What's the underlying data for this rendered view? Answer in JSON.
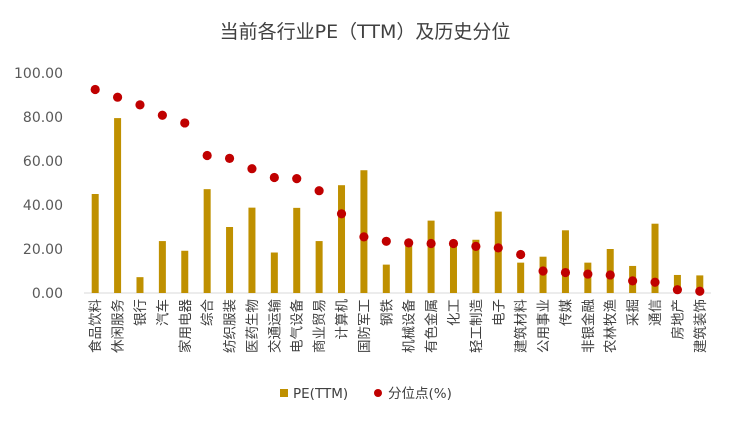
{
  "chart_data": {
    "type": "bar",
    "title": "当前各行业PE（TTM）及历史分位",
    "categories": [
      "食品饮料",
      "休闲服务",
      "银行",
      "汽车",
      "家用电器",
      "综合",
      "纺织服装",
      "医药生物",
      "交通运输",
      "电气设备",
      "商业贸易",
      "计算机",
      "国防军工",
      "钢铁",
      "机械设备",
      "有色金属",
      "化工",
      "轻工制造",
      "电子",
      "建筑材料",
      "公用事业",
      "传媒",
      "非银金融",
      "农林牧渔",
      "采掘",
      "通信",
      "房地产",
      "建筑装饰"
    ],
    "series": [
      {
        "name": "PE(TTM)",
        "kind": "bar",
        "color": "#BF9000",
        "values": [
          45.0,
          79.5,
          7.2,
          23.6,
          19.2,
          47.2,
          30.0,
          38.8,
          18.4,
          38.7,
          23.6,
          49.0,
          55.8,
          12.9,
          22.8,
          32.9,
          22.2,
          24.2,
          37.0,
          13.8,
          16.5,
          28.5,
          13.8,
          20.0,
          12.3,
          31.5,
          8.2,
          8.0
        ]
      },
      {
        "name": "分位点(%)",
        "kind": "scatter",
        "color": "#C00000",
        "values": [
          92.5,
          89.0,
          85.5,
          80.8,
          77.3,
          62.5,
          61.2,
          56.5,
          52.5,
          52.0,
          46.5,
          36.0,
          25.5,
          23.5,
          22.8,
          22.5,
          22.5,
          21.2,
          20.5,
          17.5,
          10.0,
          9.3,
          8.6,
          8.2,
          5.5,
          4.9,
          1.5,
          0.8
        ]
      }
    ],
    "ylim": [
      0,
      100
    ],
    "yticks": [
      "0.00",
      "20.00",
      "40.00",
      "60.00",
      "80.00",
      "100.00"
    ],
    "grid": false,
    "legend": "bottom"
  }
}
